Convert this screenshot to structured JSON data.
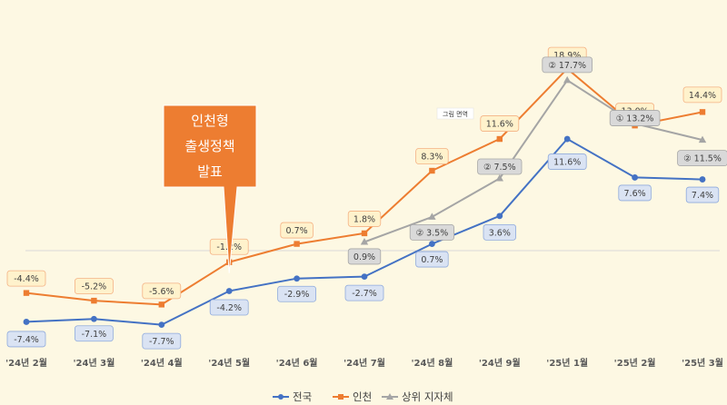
{
  "chart_data": {
    "type": "line",
    "categories": [
      "'24년 2월",
      "'24년 3월",
      "'24년 4월",
      "'24년 5월",
      "'24년 6월",
      "'24년 7월",
      "'24년 8월",
      "'24년 9월",
      "'25년 1월",
      "'25년 2월",
      "'25년 3월"
    ],
    "series": [
      {
        "name": "전국",
        "color": "#4472c4",
        "marker": "circle",
        "values": [
          -7.4,
          -7.1,
          -7.7,
          -4.2,
          -2.9,
          -2.7,
          0.7,
          3.6,
          11.6,
          7.6,
          7.4
        ],
        "labels": [
          "-7.4%",
          "-7.1%",
          "-7.7%",
          "-4.2%",
          "-2.9%",
          "-2.7%",
          "0.7%",
          "3.6%",
          "11.6%",
          "7.6%",
          "7.4%"
        ]
      },
      {
        "name": "인천",
        "color": "#ed7d31",
        "marker": "square",
        "values": [
          -4.4,
          -5.2,
          -5.6,
          -1.2,
          0.7,
          1.8,
          8.3,
          11.6,
          18.9,
          13.0,
          14.4
        ],
        "labels": [
          "-4.4%",
          "-5.2%",
          "-5.6%",
          "-1.2%",
          "0.7%",
          "1.8%",
          "8.3%",
          "11.6%",
          "18.9%",
          "13.0%",
          "14.4%"
        ]
      },
      {
        "name": "상위 지자체",
        "color": "#a5a5a5",
        "marker": "triangle",
        "values": [
          null,
          null,
          null,
          null,
          null,
          0.9,
          3.5,
          7.5,
          17.7,
          13.2,
          11.5
        ],
        "labels": [
          null,
          null,
          null,
          null,
          null,
          "0.9%",
          "② 3.5%",
          "② 7.5%",
          "② 17.7%",
          "① 13.2%",
          "② 11.5%"
        ]
      }
    ],
    "ylim": [
      -10,
      21
    ],
    "grid": false,
    "baseline": 0,
    "legend_position": "bottom",
    "annotations": {
      "callout_lines": [
        "인천형",
        "출생정책",
        "발표"
      ],
      "callout_target": "'24년 5월",
      "note": "그림 면역"
    }
  }
}
